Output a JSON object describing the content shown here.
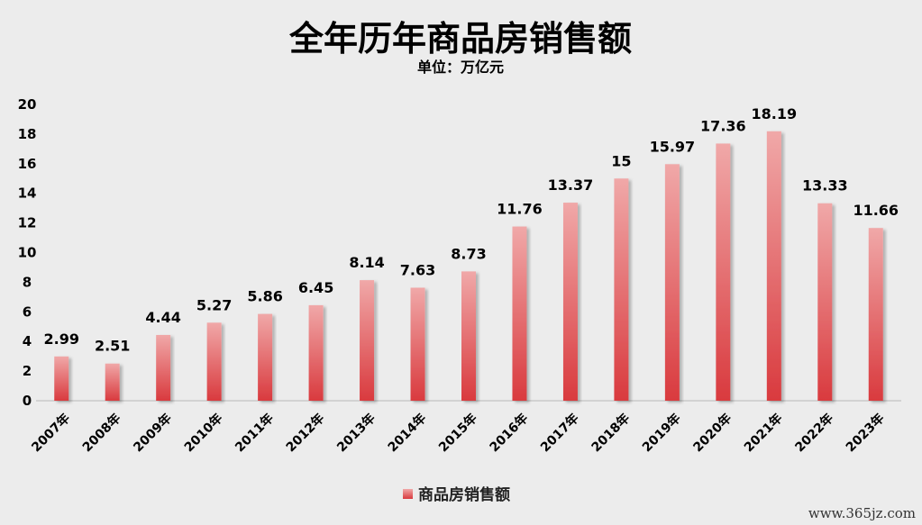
{
  "chart_data": {
    "type": "bar",
    "title": "全年历年商品房销售额",
    "subtitle": "单位：万亿元",
    "categories": [
      "2007年",
      "2008年",
      "2009年",
      "2010年",
      "2011年",
      "2012年",
      "2013年",
      "2014年",
      "2015年",
      "2016年",
      "2017年",
      "2018年",
      "2019年",
      "2020年",
      "2021年",
      "2022年",
      "2023年"
    ],
    "series": [
      {
        "name": "商品房销售额",
        "values": [
          2.99,
          2.51,
          4.44,
          5.27,
          5.86,
          6.45,
          8.14,
          7.63,
          8.73,
          11.76,
          13.37,
          15,
          15.97,
          17.36,
          18.19,
          13.33,
          11.66
        ],
        "labels": [
          "2.99",
          "2.51",
          "4.44",
          "5.27",
          "5.86",
          "6.45",
          "8.14",
          "7.63",
          "8.73",
          "11.76",
          "13.37",
          "15",
          "15.97",
          "17.36",
          "18.19",
          "13.33",
          "11.66"
        ]
      }
    ],
    "ylim": [
      0,
      20
    ],
    "yticks": [
      "0",
      "2",
      "4",
      "6",
      "8",
      "10",
      "12",
      "14",
      "16",
      "18",
      "20"
    ],
    "grid": false,
    "legend": "bottom-center"
  },
  "colors": {
    "bar_top": "#f0a8a8",
    "bar_bottom": "#d93a3e",
    "background": "#ececec"
  },
  "watermark": "www.365jz.com"
}
